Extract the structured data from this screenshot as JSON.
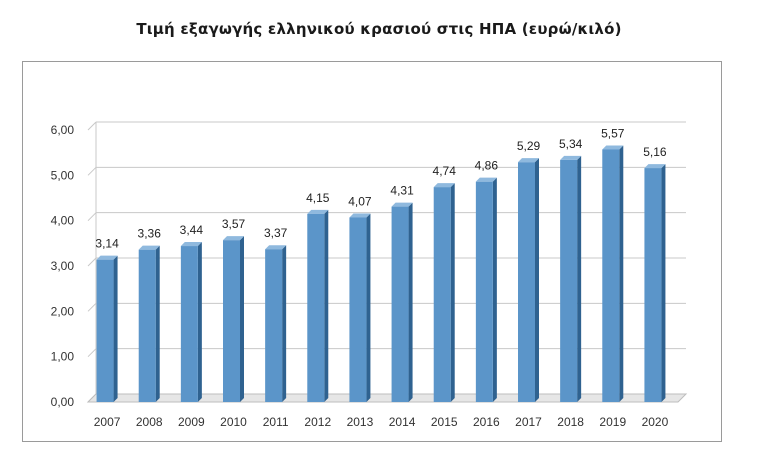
{
  "chart_data": {
    "type": "bar",
    "title": "Τιμή εξαγωγής ελληνικού κρασιού στις ΗΠΑ (ευρώ/κιλό)",
    "xlabel": "",
    "ylabel": "",
    "categories": [
      "2007",
      "2008",
      "2009",
      "2010",
      "2011",
      "2012",
      "2013",
      "2014",
      "2015",
      "2016",
      "2017",
      "2018",
      "2019",
      "2020"
    ],
    "values": [
      3.14,
      3.36,
      3.44,
      3.57,
      3.37,
      4.15,
      4.07,
      4.31,
      4.74,
      4.86,
      5.29,
      5.34,
      5.57,
      5.16
    ],
    "value_labels": [
      "3,14",
      "3,36",
      "3,44",
      "3,57",
      "3,37",
      "4,15",
      "4,07",
      "4,31",
      "4,74",
      "4,86",
      "5,29",
      "5,34",
      "5,57",
      "5,16"
    ],
    "ylim": [
      0,
      6
    ],
    "yticks": [
      0,
      1,
      2,
      3,
      4,
      5,
      6
    ],
    "ytick_labels": [
      "0,00",
      "1,00",
      "2,00",
      "3,00",
      "4,00",
      "5,00",
      "6,00"
    ],
    "grid": true,
    "legend": "none",
    "colors": {
      "bar_front": "#5b95c9",
      "bar_side": "#2f6290",
      "bar_top": "#8fb9de",
      "grid": "#c8c8c8",
      "floor": "#bdbdbd"
    }
  }
}
